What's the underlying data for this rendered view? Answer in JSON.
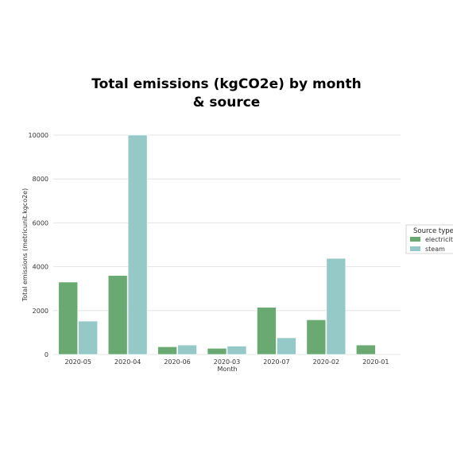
{
  "chart_data": {
    "type": "bar",
    "title": [
      "Total emissions (kgCO2e) by month",
      "& source"
    ],
    "xlabel": "Month",
    "ylabel": "Total emissions (metricunit.kgco2e)",
    "ylim": [
      0,
      10000
    ],
    "yticks": [
      0,
      2000,
      4000,
      6000,
      8000,
      10000
    ],
    "grid": "horizontal",
    "categories": [
      "2020-05",
      "2020-04",
      "2020-06",
      "2020-03",
      "2020-07",
      "2020-02",
      "2020-01"
    ],
    "series": [
      {
        "name": "electricity",
        "color": "#6aaa72",
        "values": [
          3300,
          3600,
          350,
          280,
          2150,
          1580,
          430
        ]
      },
      {
        "name": "steam",
        "color": "#94c9c7",
        "values": [
          1520,
          10000,
          430,
          380,
          760,
          4380,
          null
        ]
      }
    ],
    "legend": {
      "title": "Source type",
      "placement": "right"
    }
  }
}
